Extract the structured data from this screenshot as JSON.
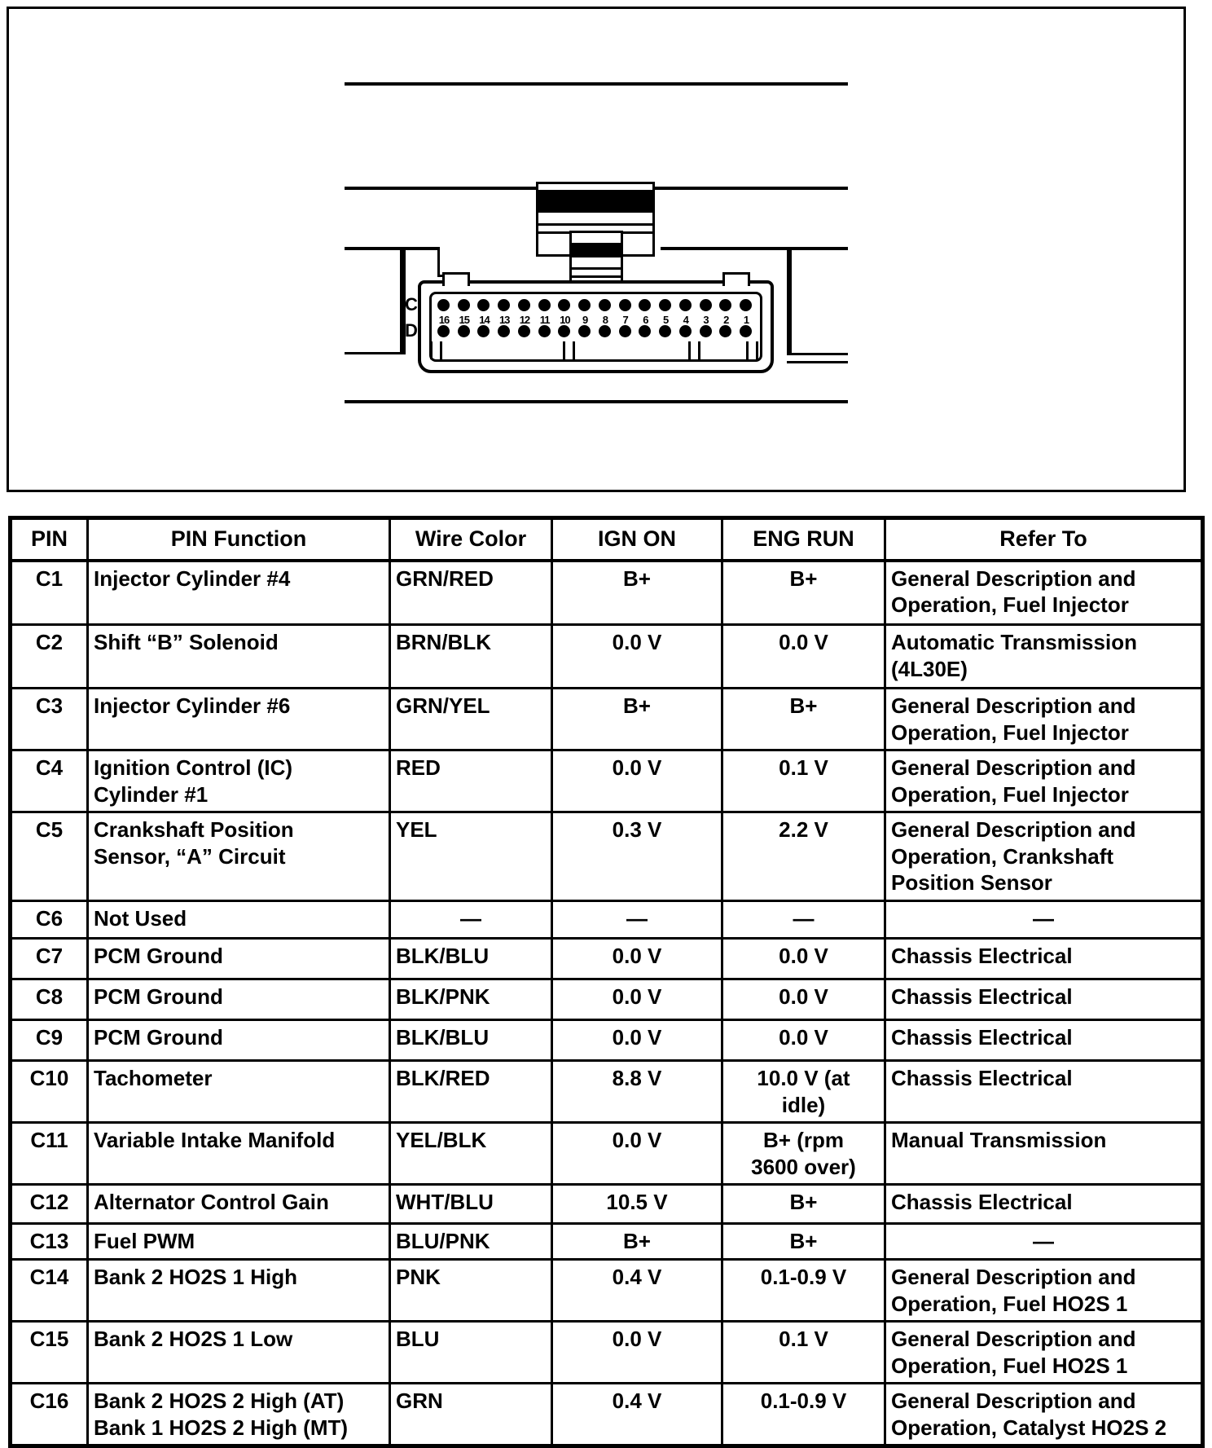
{
  "figure": {
    "connector_row_labels": [
      "C",
      "D"
    ],
    "pin_numbers": [
      "16",
      "15",
      "14",
      "13",
      "12",
      "11",
      "10",
      "9",
      "8",
      "7",
      "6",
      "5",
      "4",
      "3",
      "2",
      "1"
    ]
  },
  "table": {
    "headers": [
      "PIN",
      "PIN Function",
      "Wire Color",
      "IGN ON",
      "ENG RUN",
      "Refer To"
    ],
    "rows": [
      {
        "pin": "C1",
        "function": "Injector Cylinder #4",
        "wire_color": "GRN/RED",
        "ign_on": "B+",
        "eng_run": "B+",
        "refer_to": "General Description and\nOperation, Fuel Injector"
      },
      {
        "pin": "C2",
        "function": "Shift “B” Solenoid",
        "wire_color": "BRN/BLK",
        "ign_on": "0.0 V",
        "eng_run": "0.0 V",
        "refer_to": "Automatic Transmission\n(4L30E)"
      },
      {
        "pin": "C3",
        "function": "Injector Cylinder #6",
        "wire_color": "GRN/YEL",
        "ign_on": "B+",
        "eng_run": "B+",
        "refer_to": "General Description and\nOperation, Fuel Injector"
      },
      {
        "pin": "C4",
        "function": "Ignition Control (IC)\nCylinder #1",
        "wire_color": "RED",
        "ign_on": "0.0 V",
        "eng_run": "0.1 V",
        "refer_to": "General Description and\nOperation, Fuel Injector"
      },
      {
        "pin": "C5",
        "function": "Crankshaft Position\nSensor, “A” Circuit",
        "wire_color": "YEL",
        "ign_on": "0.3 V",
        "eng_run": "2.2 V",
        "refer_to": "General Description and\nOperation, Crankshaft\nPosition Sensor"
      },
      {
        "pin": "C6",
        "function": "Not Used",
        "wire_color": "—",
        "ign_on": "—",
        "eng_run": "—",
        "refer_to": "—"
      },
      {
        "pin": "C7",
        "function": "PCM Ground",
        "wire_color": "BLK/BLU",
        "ign_on": "0.0 V",
        "eng_run": "0.0 V",
        "refer_to": "Chassis Electrical"
      },
      {
        "pin": "C8",
        "function": "PCM Ground",
        "wire_color": "BLK/PNK",
        "ign_on": "0.0 V",
        "eng_run": "0.0 V",
        "refer_to": "Chassis Electrical"
      },
      {
        "pin": "C9",
        "function": "PCM Ground",
        "wire_color": "BLK/BLU",
        "ign_on": "0.0 V",
        "eng_run": "0.0 V",
        "refer_to": "Chassis Electrical"
      },
      {
        "pin": "C10",
        "function": "Tachometer",
        "wire_color": "BLK/RED",
        "ign_on": "8.8 V",
        "eng_run": "10.0 V (at\nidle)",
        "refer_to": "Chassis Electrical"
      },
      {
        "pin": "C11",
        "function": "Variable Intake Manifold",
        "wire_color": "YEL/BLK",
        "ign_on": "0.0 V",
        "eng_run": "B+ (rpm\n3600 over)",
        "refer_to": "Manual Transmission"
      },
      {
        "pin": "C12",
        "function": "Alternator Control Gain",
        "wire_color": "WHT/BLU",
        "ign_on": "10.5 V",
        "eng_run": "B+",
        "refer_to": "Chassis Electrical"
      },
      {
        "pin": "C13",
        "function": "Fuel PWM",
        "wire_color": "BLU/PNK",
        "ign_on": "B+",
        "eng_run": "B+",
        "refer_to": "—"
      },
      {
        "pin": "C14",
        "function": "Bank 2 HO2S 1 High",
        "wire_color": "PNK",
        "ign_on": "0.4 V",
        "eng_run": "0.1-0.9 V",
        "refer_to": "General Description and\nOperation, Fuel HO2S 1"
      },
      {
        "pin": "C15",
        "function": "Bank 2 HO2S 1 Low",
        "wire_color": "BLU",
        "ign_on": "0.0 V",
        "eng_run": "0.1 V",
        "refer_to": "General Description and\nOperation, Fuel HO2S 1"
      },
      {
        "pin": "C16",
        "function": "Bank 2 HO2S 2 High (AT)\nBank 1 HO2S 2 High (MT)",
        "wire_color": "GRN",
        "ign_on": "0.4 V",
        "eng_run": "0.1-0.9 V",
        "refer_to": "General Description and\nOperation, Catalyst HO2S 2"
      }
    ]
  }
}
